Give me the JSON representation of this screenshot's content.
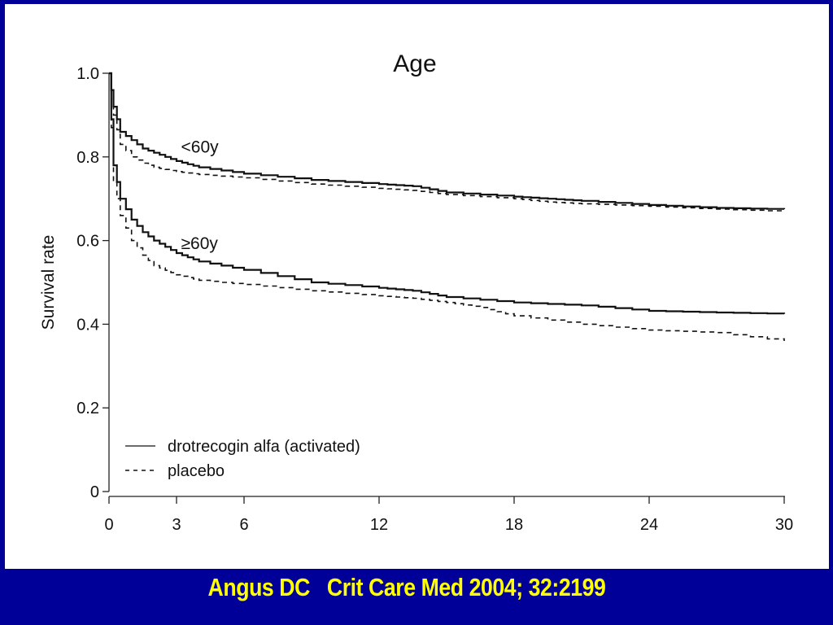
{
  "colors": {
    "background": "#000099",
    "panel": "#ffffff",
    "citation": "#ffff00",
    "ink": "#111111"
  },
  "citation": "Angus DC   Crit Care Med 2004; 32:2199",
  "chart_data": {
    "type": "line",
    "title": "Age",
    "xlabel": "",
    "ylabel": "Survival rate",
    "xlim": [
      0,
      30
    ],
    "ylim": [
      0,
      1.0
    ],
    "x_ticks": [
      0,
      3,
      6,
      12,
      18,
      24,
      30
    ],
    "x_tick_labels": [
      "0",
      "3",
      "6",
      "12",
      "18",
      "24",
      "30"
    ],
    "y_ticks": [
      0,
      0.2,
      0.4,
      0.6,
      0.8,
      1.0
    ],
    "y_tick_labels": [
      "0",
      "0.2",
      "0.4",
      "0.6",
      "0.8",
      "1.0"
    ],
    "grid": false,
    "legend_position": "bottom-left",
    "legend": [
      {
        "label": "drotrecogin alfa (activated)",
        "style": "solid"
      },
      {
        "label": "placebo",
        "style": "dashed"
      }
    ],
    "annotations": [
      {
        "text": "<60y",
        "x": 3.2,
        "y": 0.81
      },
      {
        "text": "≥60y",
        "x": 3.2,
        "y": 0.58
      }
    ],
    "series": [
      {
        "name": "<60y drotrecogin alfa (activated)",
        "group": "<60y",
        "style": "solid",
        "x": [
          0,
          0.2,
          0.5,
          1,
          1.5,
          2,
          3,
          4,
          6,
          9,
          12,
          13.5,
          15,
          18,
          19.5,
          21,
          24,
          27,
          30
        ],
        "y": [
          1.0,
          0.92,
          0.86,
          0.84,
          0.82,
          0.81,
          0.79,
          0.775,
          0.76,
          0.745,
          0.735,
          0.73,
          0.715,
          0.705,
          0.7,
          0.695,
          0.685,
          0.678,
          0.675
        ]
      },
      {
        "name": "<60y placebo",
        "group": "<60y",
        "style": "dashed",
        "x": [
          0,
          0.2,
          0.5,
          1,
          1.5,
          2,
          3,
          4,
          6,
          9,
          12,
          13.5,
          15,
          18,
          19.5,
          21,
          24,
          27,
          30
        ],
        "y": [
          1.0,
          0.9,
          0.83,
          0.8,
          0.785,
          0.775,
          0.765,
          0.758,
          0.75,
          0.735,
          0.725,
          0.72,
          0.71,
          0.7,
          0.692,
          0.688,
          0.682,
          0.675,
          0.67
        ]
      },
      {
        "name": "≥60y drotrecogin alfa (activated)",
        "group": "≥60y",
        "style": "solid",
        "x": [
          0,
          0.2,
          0.5,
          1,
          1.5,
          2,
          3,
          4,
          6,
          9,
          12,
          13.5,
          15,
          18,
          21,
          24,
          27,
          30
        ],
        "y": [
          1.0,
          0.78,
          0.7,
          0.65,
          0.62,
          0.6,
          0.57,
          0.55,
          0.53,
          0.5,
          0.487,
          0.48,
          0.465,
          0.452,
          0.445,
          0.432,
          0.428,
          0.425
        ]
      },
      {
        "name": "≥60y placebo",
        "group": "≥60y",
        "style": "dashed",
        "x": [
          0,
          0.2,
          0.5,
          1,
          1.5,
          2,
          3,
          4,
          6,
          9,
          12,
          13.5,
          15,
          16.5,
          18,
          21,
          24,
          27,
          30
        ],
        "y": [
          1.0,
          0.74,
          0.66,
          0.6,
          0.565,
          0.54,
          0.518,
          0.505,
          0.495,
          0.48,
          0.468,
          0.462,
          0.452,
          0.44,
          0.42,
          0.4,
          0.386,
          0.38,
          0.36
        ]
      }
    ]
  }
}
